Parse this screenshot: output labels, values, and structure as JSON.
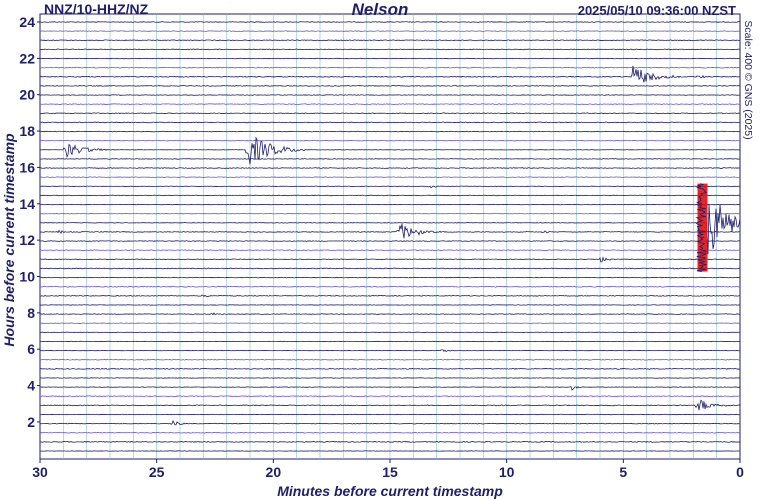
{
  "header": {
    "station": "NNZ/10-HHZ/NZ",
    "site": "Nelson",
    "timestamp": "2025/05/10 09:36:00 NZST",
    "scale_note": "Scale: 400 © GNS (2025)"
  },
  "chart_data": {
    "type": "line",
    "title": "Nelson",
    "xlabel": "Minutes before current timestamp",
    "ylabel": "Hours before current timestamp",
    "xlim": [
      30,
      0
    ],
    "ylim": [
      0,
      24
    ],
    "x_ticks": [
      30,
      25,
      20,
      15,
      10,
      5,
      0
    ],
    "y_ticks": [
      2,
      4,
      6,
      8,
      10,
      12,
      14,
      16,
      18,
      20,
      22,
      24
    ],
    "trace_rows_per_hour": 2,
    "grid": true,
    "colors": {
      "trace": "#1e1e6e",
      "grid": "#7fbfbf",
      "clip": "#e01010"
    },
    "events": [
      {
        "hour": 20.8,
        "minute": 4.6,
        "amplitude": 12,
        "duration": 2.0
      },
      {
        "hour": 16.9,
        "minute": 28.9,
        "amplitude": 8,
        "duration": 2.0
      },
      {
        "hour": 16.8,
        "minute": 21.1,
        "amplitude": 18,
        "duration": 2.5
      },
      {
        "hour": 12.4,
        "minute": 14.6,
        "amplitude": 10,
        "duration": 1.8
      },
      {
        "hour": 12.8,
        "minute": 1.4,
        "amplitude": 40,
        "duration": 2.2,
        "clipped": true
      },
      {
        "hour": 11.2,
        "minute": 6.0,
        "amplitude": 4,
        "duration": 0.8
      },
      {
        "hour": 6.2,
        "minute": 12.8,
        "amplitude": 3,
        "duration": 0.6
      },
      {
        "hour": 3.8,
        "minute": 7.2,
        "amplitude": 3,
        "duration": 0.6
      },
      {
        "hour": 3.0,
        "minute": 1.8,
        "amplitude": 8,
        "duration": 1.4
      },
      {
        "hour": 2.2,
        "minute": 24.3,
        "amplitude": 3,
        "duration": 0.8
      },
      {
        "hour": 14.8,
        "minute": 13.3,
        "amplitude": 3,
        "duration": 0.5
      },
      {
        "hour": 12.4,
        "minute": 8.4,
        "amplitude": 2,
        "duration": 0.6
      },
      {
        "hour": 12.4,
        "minute": 29.2,
        "amplitude": 2,
        "duration": 0.8
      },
      {
        "hour": 21.2,
        "minute": 1.8,
        "amplitude": 3,
        "duration": 0.6
      },
      {
        "hour": 8.9,
        "minute": 23.0,
        "amplitude": 2,
        "duration": 0.5
      },
      {
        "hour": 8.2,
        "minute": 22.6,
        "amplitude": 2,
        "duration": 0.5
      }
    ]
  }
}
